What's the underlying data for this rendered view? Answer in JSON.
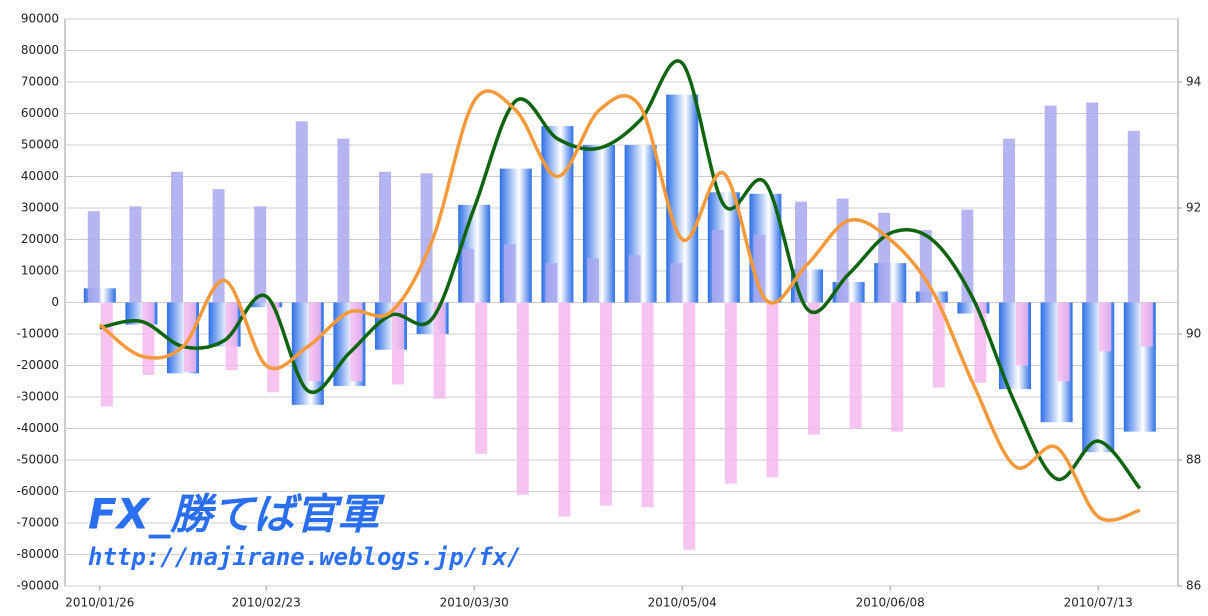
{
  "chart_data": {
    "type": "bar-line",
    "categories": [
      "2010/01/26",
      null,
      null,
      null,
      "2010/02/23",
      null,
      null,
      null,
      null,
      "2010/03/30",
      null,
      null,
      null,
      null,
      "2010/05/04",
      null,
      null,
      null,
      null,
      "2010/06/08",
      null,
      null,
      null,
      null,
      "2010/07/13",
      null
    ],
    "categories_shown": [
      4,
      9,
      14,
      19,
      24
    ],
    "series": [
      {
        "color": "#3d7ee8",
        "values": [
          4500,
          -7000,
          -22500,
          -14000,
          -1500,
          -32500,
          -26500,
          -15000,
          -10000,
          31000,
          42500,
          56000,
          50000,
          50000,
          66000,
          35000,
          34500,
          10500,
          6500,
          12500,
          3500,
          -3500,
          -27500,
          -38000,
          -47500,
          -41000
        ]
      },
      {
        "color": "#a9a8f0",
        "values": [
          29000,
          30500,
          41500,
          36000,
          30500,
          57500,
          52000,
          41500,
          41000,
          17000,
          18500,
          12500,
          14000,
          15000,
          12500,
          23000,
          21500,
          32000,
          33000,
          28500,
          23000,
          29500,
          52000,
          62500,
          63500,
          54500
        ]
      },
      {
        "color": "#f5b5ee",
        "values": [
          -33000,
          -23000,
          -22000,
          -21500,
          -28500,
          -25000,
          -25000,
          -26000,
          -30500,
          -48000,
          -61000,
          -68000,
          -64500,
          -65000,
          -78500,
          -57500,
          -55500,
          -42000,
          -40000,
          -41000,
          -27000,
          -25500,
          -20000,
          -25000,
          -15500,
          -14000
        ]
      },
      {
        "color": "#0f6410",
        "axis": "y2",
        "values": [
          90.1,
          90.2,
          89.8,
          89.9,
          90.6,
          89.1,
          89.7,
          90.3,
          90.25,
          92.0,
          93.7,
          93.1,
          92.95,
          93.4,
          94.3,
          92.05,
          92.4,
          90.4,
          90.95,
          91.6,
          91.5,
          90.55,
          88.9,
          87.7,
          88.3,
          87.55
        ]
      },
      {
        "color": "#f59a3c",
        "axis": "y2",
        "values": [
          90.15,
          89.65,
          89.8,
          90.85,
          89.5,
          89.8,
          90.35,
          90.35,
          91.5,
          93.7,
          93.55,
          92.5,
          93.55,
          93.6,
          91.5,
          92.55,
          90.55,
          91.1,
          91.8,
          91.5,
          90.7,
          89.2,
          87.9,
          88.2,
          87.1,
          87.2
        ]
      }
    ],
    "ylim": [
      -90000,
      90000
    ],
    "yticks": [
      -90000,
      -80000,
      -70000,
      -60000,
      -50000,
      -40000,
      -30000,
      -20000,
      -10000,
      0,
      10000,
      20000,
      30000,
      40000,
      50000,
      60000,
      70000,
      80000,
      90000
    ],
    "y2lim": [
      86,
      95
    ],
    "y2ticks": [
      86,
      88,
      90,
      92,
      94
    ],
    "grid": true,
    "annotations": [
      "FX_勝てば官軍",
      "http://najirane.weblogs.jp/fx/"
    ]
  }
}
